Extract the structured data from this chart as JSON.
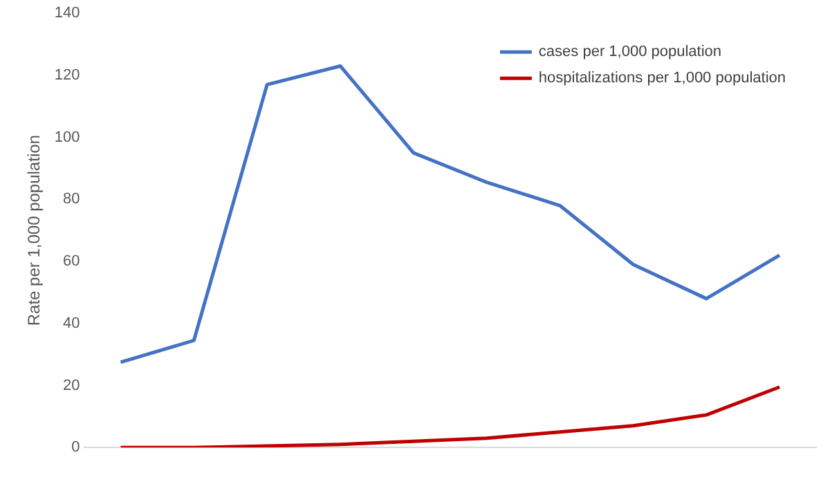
{
  "chart_data": {
    "type": "line",
    "ylabel": "Rate per 1,000 population",
    "categories": [
      null,
      null,
      null,
      null,
      null,
      null,
      null,
      null,
      null,
      null
    ],
    "series": [
      {
        "name": "cases per 1,000 population",
        "color": "#4472c4",
        "values": [
          27.5,
          34.5,
          117,
          123,
          95,
          85.5,
          78,
          59,
          48,
          62
        ]
      },
      {
        "name": "hospitalizations per 1,000 population",
        "color": "#c00000",
        "values": [
          0,
          0,
          0.5,
          1,
          2,
          3,
          5,
          7,
          10.5,
          19.5
        ]
      }
    ],
    "ylim": [
      0,
      140
    ],
    "yticks": [
      0,
      20,
      40,
      60,
      80,
      100,
      120,
      140
    ],
    "grid": false,
    "legend": "top right",
    "marker": "none",
    "line_style": "solid"
  }
}
